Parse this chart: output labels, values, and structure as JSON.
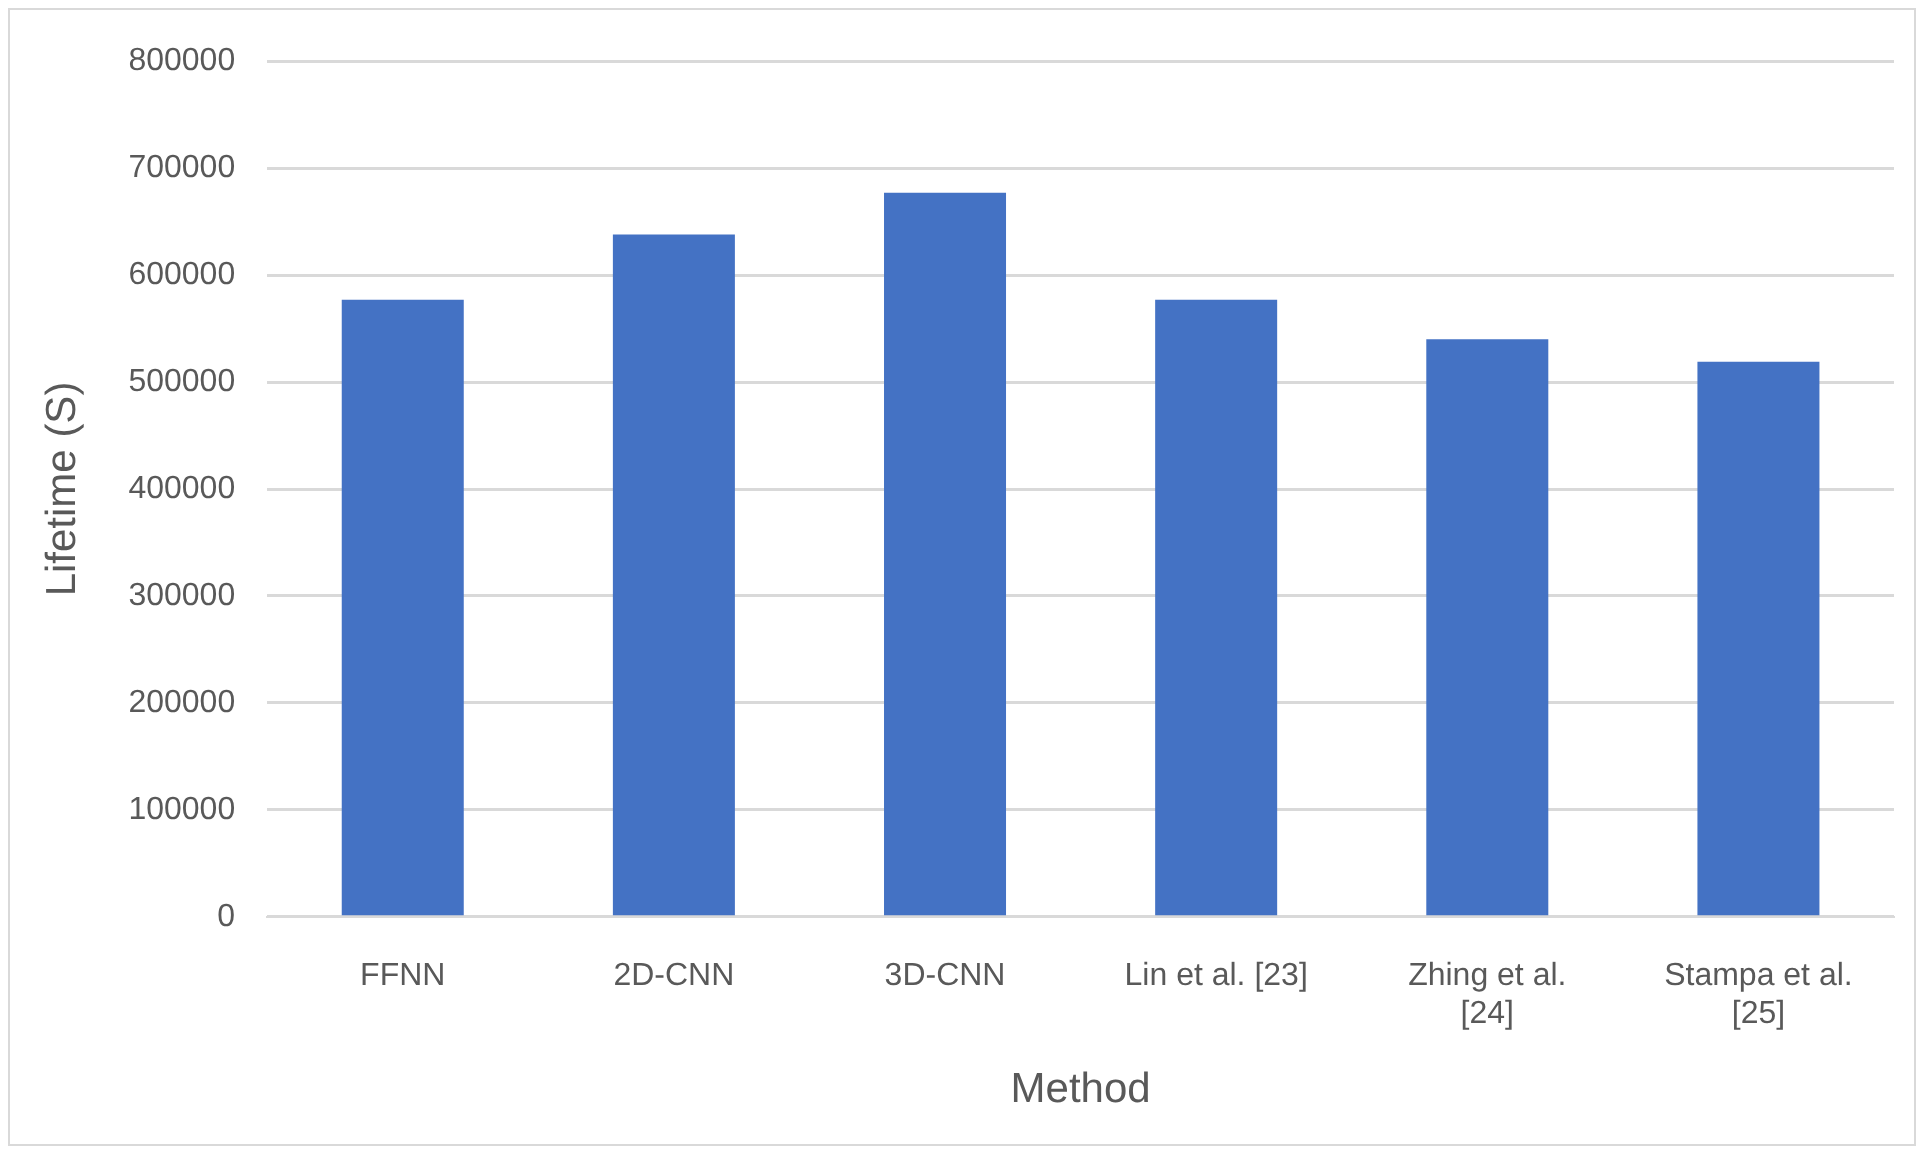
{
  "chart_data": {
    "type": "bar",
    "xlabel": "Method",
    "ylabel": "Lifetime (S)",
    "categories": [
      "FFNN",
      "2D-CNN",
      "3D-CNN",
      "Lin et al. [23]",
      "Zhing et al. [24]",
      "Stampa et al. [25]"
    ],
    "values": [
      577000,
      638000,
      677000,
      577000,
      540000,
      519000
    ],
    "color": "#4472c4",
    "ylim": [
      0,
      800000
    ],
    "yticks": [
      0,
      100000,
      200000,
      300000,
      400000,
      500000,
      600000,
      700000,
      800000
    ],
    "grid": "y",
    "legend": false
  }
}
